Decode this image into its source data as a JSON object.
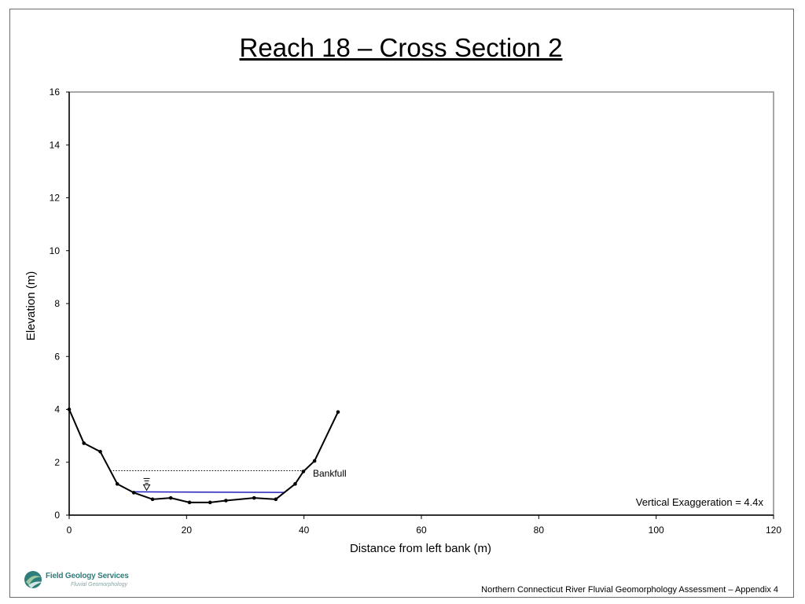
{
  "title": "Reach 18 – Cross Section 2",
  "footer": "Northern Connecticut River Fluvial Geomorphology Assessment – Appendix 4",
  "logo": {
    "name": "Field Geology Services",
    "tagline": "Fluvial Geomorphology"
  },
  "chart_data": {
    "type": "line",
    "xlabel": "Distance from left bank (m)",
    "ylabel": "Elevation (m)",
    "xlim": [
      0,
      120
    ],
    "ylim": [
      0,
      16
    ],
    "xticks": [
      0,
      20,
      40,
      60,
      80,
      100,
      120
    ],
    "yticks": [
      0,
      2,
      4,
      6,
      8,
      10,
      12,
      14,
      16
    ],
    "grid": false,
    "series": [
      {
        "role": "ground-profile",
        "x": [
          0,
          2.5,
          5.3,
          8.2,
          11,
          14.2,
          17.3,
          20.5,
          24,
          26.7,
          31.5,
          35.2,
          38.5,
          39.9,
          41.8,
          45.8
        ],
        "y": [
          4.0,
          2.72,
          2.4,
          1.18,
          0.85,
          0.6,
          0.65,
          0.48,
          0.48,
          0.55,
          0.65,
          0.6,
          1.18,
          1.65,
          2.05,
          3.9
        ]
      }
    ],
    "bankfull": {
      "x": [
        7.0,
        39.9
      ],
      "y": 1.68,
      "label": "Bankfull"
    },
    "water_surface": {
      "x": [
        11.0,
        36.8
      ],
      "y": [
        0.88,
        0.86
      ]
    },
    "annotation": "Vertical Exaggeration = 4.4x",
    "colors": {
      "profile": "#000000",
      "water": "#1f1fbf",
      "bankfull": "#000000"
    }
  }
}
